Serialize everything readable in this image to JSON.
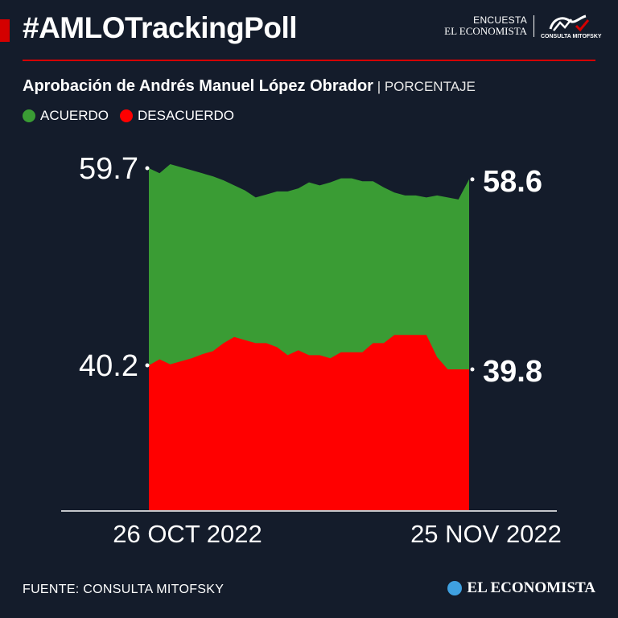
{
  "header": {
    "hashtag": "#AMLOTrackingPoll",
    "brand_line1": "ENCUESTA",
    "brand_line2": "EL ECONOMISTA",
    "partner_logo_text": "CONSULTA MITOFSKY",
    "accent_color": "#d40000"
  },
  "subtitle": {
    "main": "Aprobación de Andrés Manuel López Obrador",
    "separator": " | ",
    "unit": "PORCENTAJE"
  },
  "legend": [
    {
      "label": "ACUERDO",
      "color": "#3a9c34"
    },
    {
      "label": "DESACUERDO",
      "color": "#ff0000"
    }
  ],
  "chart_data": {
    "type": "area",
    "x_start_label": "26 OCT 2022",
    "x_end_label": "25 NOV 2022",
    "y_ticks": [
      "59.7",
      "40.2"
    ],
    "end_labels": [
      "58.6",
      "39.8"
    ],
    "ylim": [
      20,
      62
    ],
    "series": [
      {
        "name": "ACUERDO",
        "color": "#3a9c34",
        "values": [
          59.7,
          59.2,
          60.1,
          59.8,
          59.5,
          59.2,
          58.9,
          58.5,
          58.0,
          57.5,
          56.8,
          57.1,
          57.4,
          57.4,
          57.7,
          58.3,
          58.0,
          58.3,
          58.7,
          58.7,
          58.4,
          58.4,
          57.8,
          57.3,
          57.0,
          57.0,
          56.8,
          57.0,
          56.8,
          56.6,
          58.6
        ]
      },
      {
        "name": "DESACUERDO",
        "color": "#ff0000",
        "values": [
          40.2,
          40.8,
          40.3,
          40.6,
          40.9,
          41.3,
          41.6,
          42.4,
          43.0,
          42.7,
          42.4,
          42.4,
          42.0,
          41.2,
          41.7,
          41.2,
          41.2,
          40.9,
          41.5,
          41.5,
          41.5,
          42.4,
          42.4,
          43.2,
          43.2,
          43.2,
          43.2,
          41.0,
          39.8,
          39.8,
          39.8
        ]
      }
    ],
    "grid": false,
    "legend_position": "top-left"
  },
  "footer": {
    "source": "FUENTE: CONSULTA MITOFSKY",
    "logo_text": "EL ECONOMISTA"
  }
}
